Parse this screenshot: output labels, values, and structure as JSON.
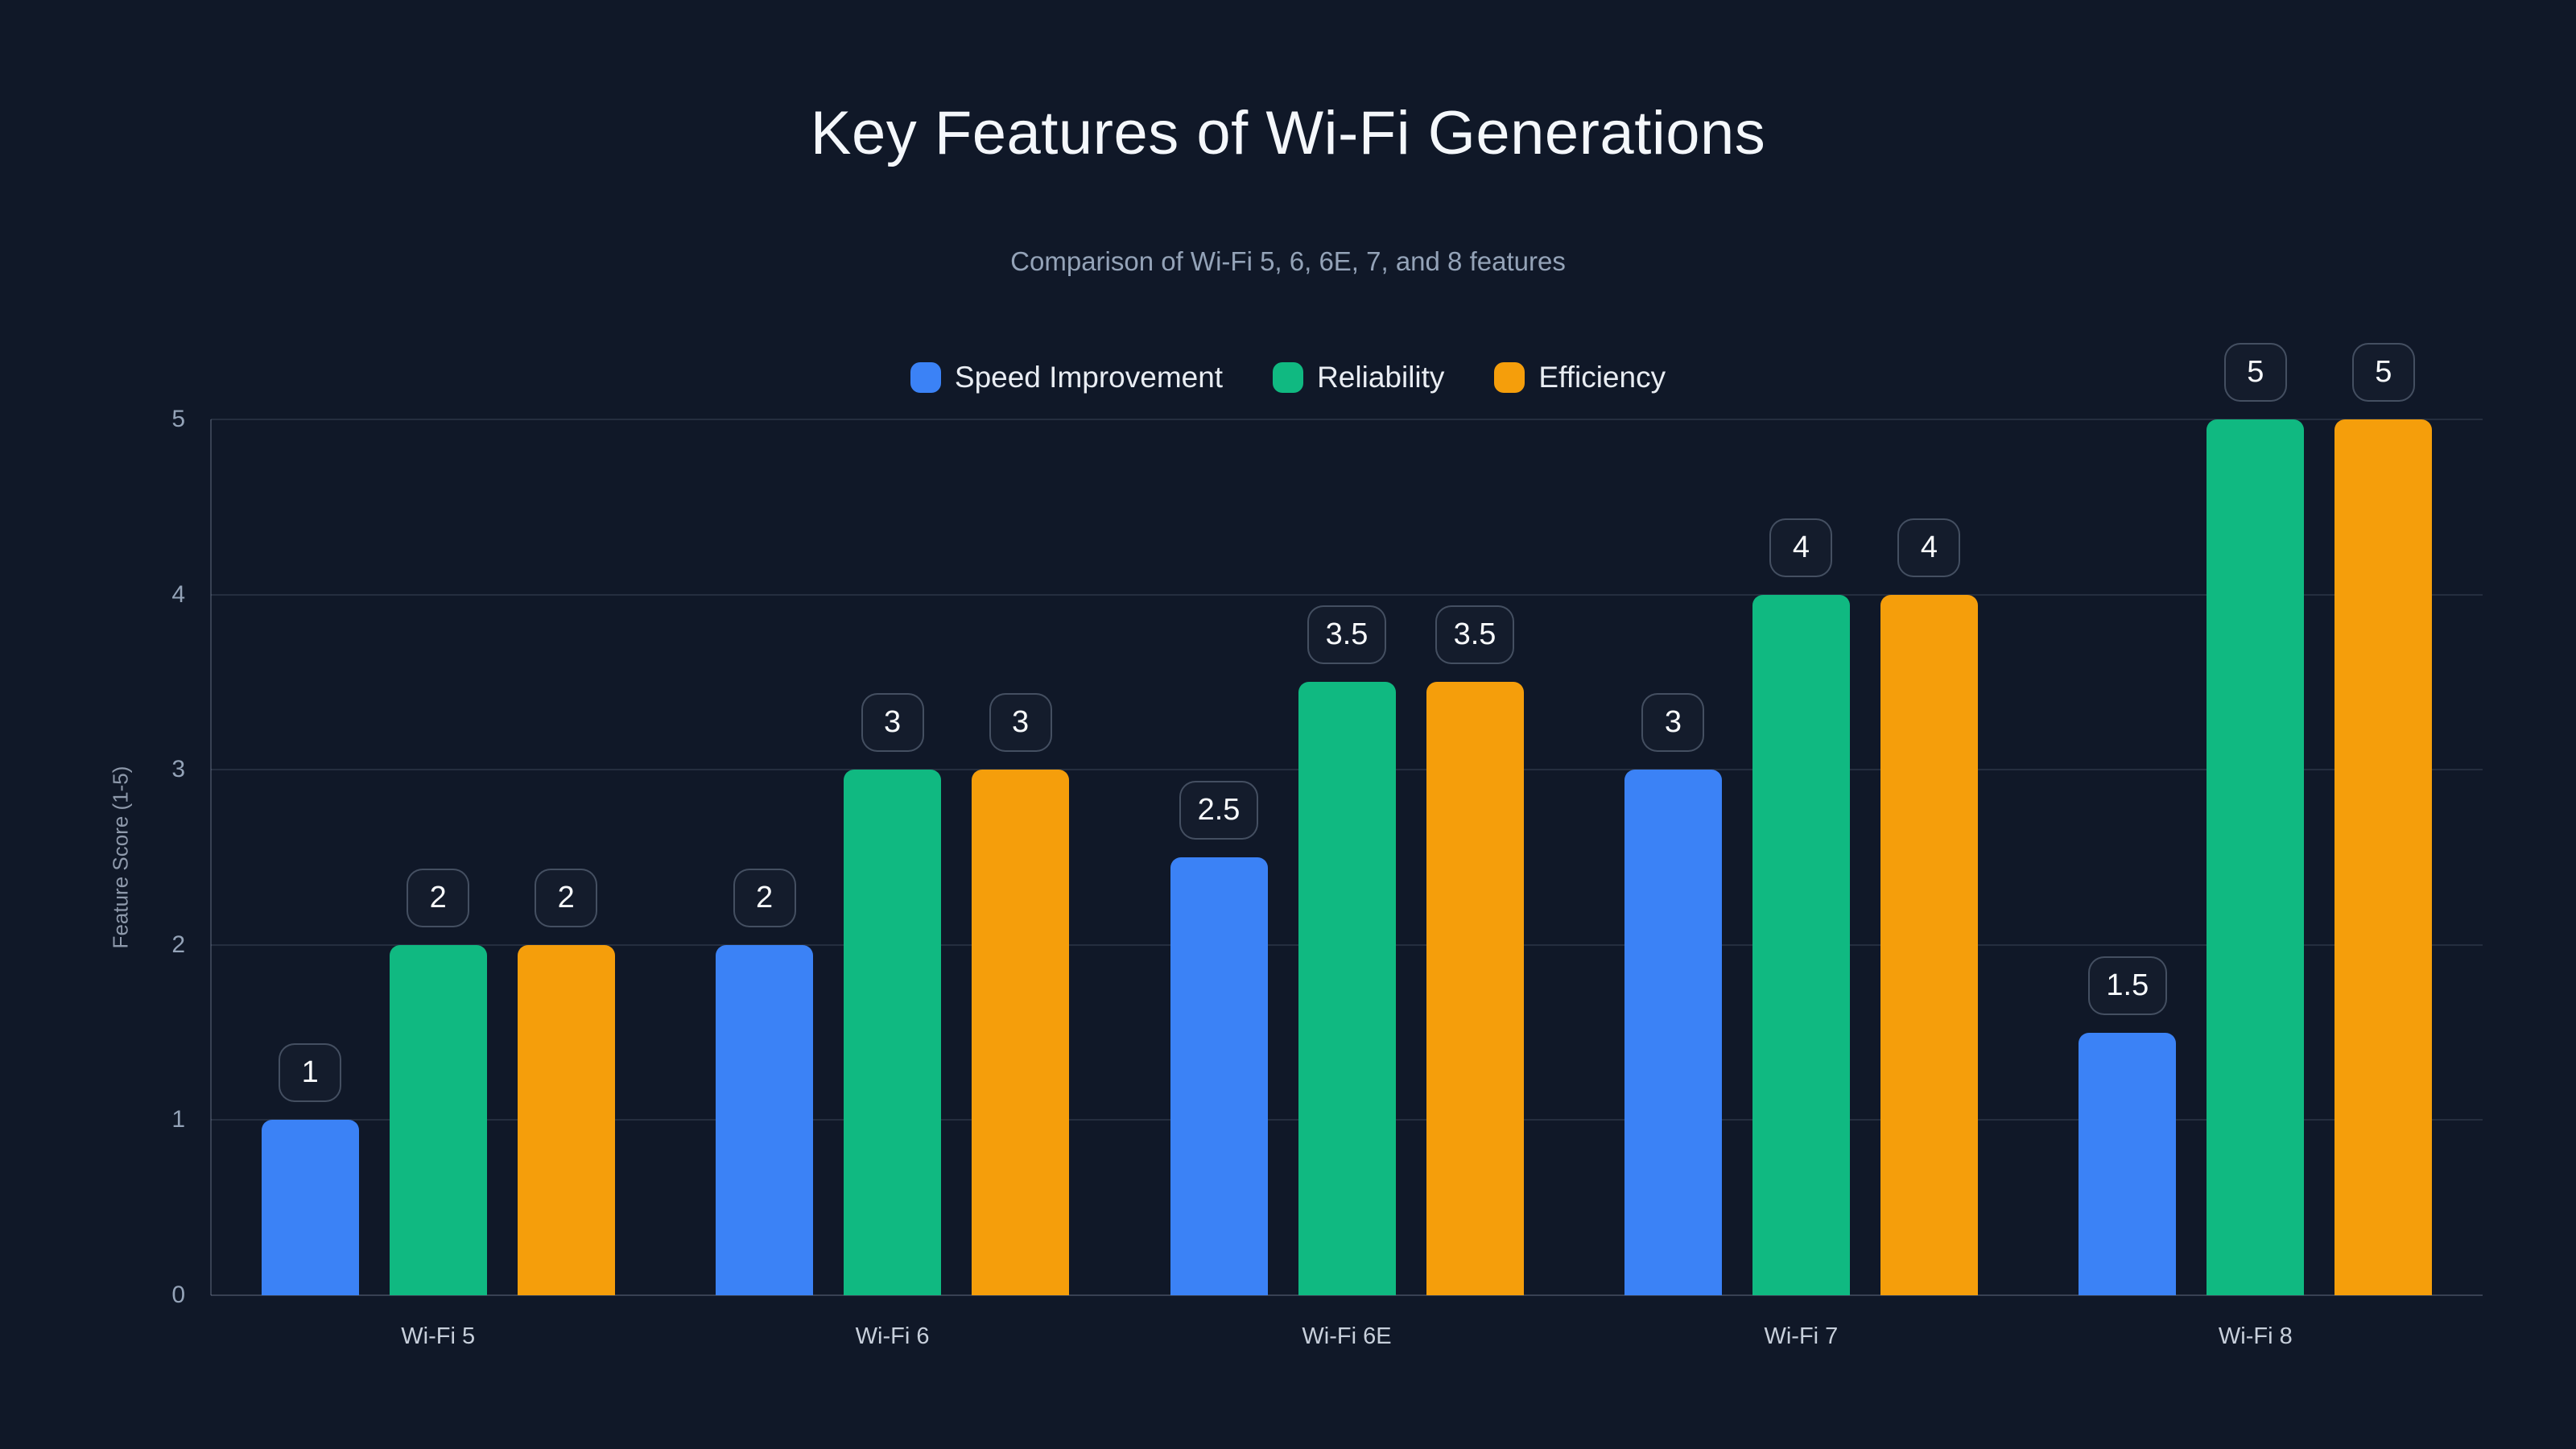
{
  "chart_data": {
    "type": "bar",
    "title": "Key Features of Wi-Fi Generations",
    "subtitle": "Comparison of Wi-Fi 5, 6, 6E, 7, and 8 features",
    "categories": [
      "Wi-Fi 5",
      "Wi-Fi 6",
      "Wi-Fi 6E",
      "Wi-Fi 7",
      "Wi-Fi 8"
    ],
    "series": [
      {
        "name": "Speed Improvement",
        "color": "#3b82f6",
        "values": [
          1,
          2,
          2.5,
          3,
          1.5
        ]
      },
      {
        "name": "Reliability",
        "color": "#10b981",
        "values": [
          2,
          3,
          3.5,
          4,
          5
        ]
      },
      {
        "name": "Efficiency",
        "color": "#f59e0b",
        "values": [
          2,
          3,
          3.5,
          4,
          5
        ]
      }
    ],
    "value_labels": [
      [
        "1",
        "2",
        "2.5",
        "3",
        "1.5"
      ],
      [
        "2",
        "3",
        "3.5",
        "4",
        "5"
      ],
      [
        "2",
        "3",
        "3.5",
        "4",
        "5"
      ]
    ],
    "xlabel": "",
    "ylabel": "Feature Score (1-5)",
    "ylim": [
      0,
      5
    ],
    "yticks": [
      0,
      1,
      2,
      3,
      4,
      5
    ],
    "grid": true,
    "legend_position": "top"
  },
  "colors": {
    "background": "#101828",
    "title_text": "#f4f7fb",
    "subtitle_text": "#94a3b8",
    "legend_text": "#e9edf3",
    "y_tick_text": "#94a3b8",
    "x_label_text": "#c7cfdb",
    "value_label_text": "#f8fafc",
    "value_label_border": "#4550633",
    "gridline": "#94a3b829"
  }
}
